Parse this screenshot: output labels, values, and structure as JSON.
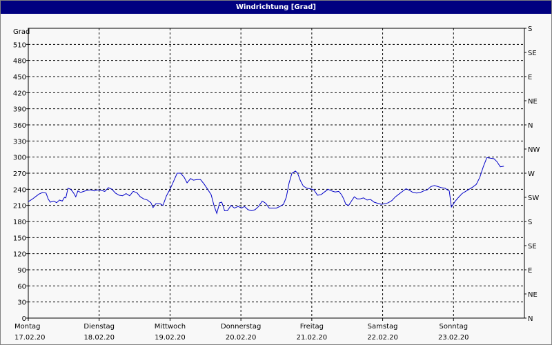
{
  "window": {
    "title": "Windrichtung [Grad]"
  },
  "chart_data": {
    "type": "line",
    "title": "Windrichtung [Grad]",
    "ylabel": "Grad",
    "ylim": [
      0,
      540
    ],
    "yticks": [
      0,
      30,
      60,
      90,
      120,
      150,
      180,
      210,
      240,
      270,
      300,
      330,
      360,
      390,
      420,
      450,
      480,
      510
    ],
    "right_axis_labels": [
      "N",
      "NE",
      "E",
      "SE",
      "S",
      "SW",
      "W",
      "NW",
      "N",
      "NE",
      "E",
      "SE",
      "S"
    ],
    "right_axis_values": [
      0,
      45,
      90,
      135,
      180,
      225,
      270,
      315,
      360,
      405,
      450,
      495,
      540
    ],
    "xlim": [
      0,
      7
    ],
    "x_ticks": [
      {
        "x": 0,
        "day": "Montag",
        "date": "17.02.20"
      },
      {
        "x": 1,
        "day": "Dienstag",
        "date": "18.02.20"
      },
      {
        "x": 2,
        "day": "Mittwoch",
        "date": "19.02.20"
      },
      {
        "x": 3,
        "day": "Donnerstag",
        "date": "20.02.20"
      },
      {
        "x": 4,
        "day": "Freitag",
        "date": "21.02.20"
      },
      {
        "x": 5,
        "day": "Samstag",
        "date": "22.02.20"
      },
      {
        "x": 6,
        "day": "Sonntag",
        "date": "23.02.20"
      }
    ],
    "grid": true,
    "series": [
      {
        "color": "#0000c8",
        "points": [
          [
            0.0,
            217
          ],
          [
            0.05,
            221
          ],
          [
            0.1,
            226
          ],
          [
            0.15,
            231
          ],
          [
            0.2,
            234
          ],
          [
            0.25,
            233
          ],
          [
            0.28,
            222
          ],
          [
            0.31,
            216
          ],
          [
            0.36,
            218
          ],
          [
            0.4,
            215
          ],
          [
            0.44,
            220
          ],
          [
            0.48,
            218
          ],
          [
            0.51,
            225
          ],
          [
            0.53,
            224
          ],
          [
            0.56,
            242
          ],
          [
            0.6,
            240
          ],
          [
            0.64,
            233
          ],
          [
            0.67,
            226
          ],
          [
            0.7,
            237
          ],
          [
            0.74,
            234
          ],
          [
            0.78,
            236
          ],
          [
            0.83,
            238
          ],
          [
            0.88,
            239
          ],
          [
            0.93,
            237
          ],
          [
            0.98,
            239
          ],
          [
            1.03,
            238
          ],
          [
            1.08,
            236
          ],
          [
            1.13,
            243
          ],
          [
            1.18,
            240
          ],
          [
            1.23,
            233
          ],
          [
            1.28,
            229
          ],
          [
            1.33,
            228
          ],
          [
            1.38,
            232
          ],
          [
            1.43,
            228
          ],
          [
            1.48,
            236
          ],
          [
            1.53,
            234
          ],
          [
            1.58,
            226
          ],
          [
            1.63,
            222
          ],
          [
            1.68,
            220
          ],
          [
            1.73,
            215
          ],
          [
            1.76,
            206
          ],
          [
            1.8,
            213
          ],
          [
            1.86,
            213
          ],
          [
            1.9,
            210
          ],
          [
            1.95,
            228
          ],
          [
            2.0,
            240
          ],
          [
            2.05,
            255
          ],
          [
            2.1,
            270
          ],
          [
            2.15,
            270
          ],
          [
            2.2,
            262
          ],
          [
            2.24,
            252
          ],
          [
            2.29,
            260
          ],
          [
            2.33,
            257
          ],
          [
            2.38,
            258
          ],
          [
            2.43,
            258
          ],
          [
            2.48,
            250
          ],
          [
            2.53,
            240
          ],
          [
            2.58,
            230
          ],
          [
            2.62,
            210
          ],
          [
            2.66,
            195
          ],
          [
            2.7,
            215
          ],
          [
            2.73,
            216
          ],
          [
            2.77,
            200
          ],
          [
            2.81,
            200
          ],
          [
            2.86,
            210
          ],
          [
            2.91,
            205
          ],
          [
            2.96,
            208
          ],
          [
            3.01,
            205
          ],
          [
            3.05,
            208
          ],
          [
            3.1,
            202
          ],
          [
            3.15,
            200
          ],
          [
            3.2,
            202
          ],
          [
            3.25,
            208
          ],
          [
            3.3,
            218
          ],
          [
            3.35,
            214
          ],
          [
            3.4,
            205
          ],
          [
            3.45,
            205
          ],
          [
            3.5,
            205
          ],
          [
            3.55,
            208
          ],
          [
            3.6,
            212
          ],
          [
            3.64,
            225
          ],
          [
            3.68,
            252
          ],
          [
            3.72,
            270
          ],
          [
            3.77,
            274
          ],
          [
            3.8,
            270
          ],
          [
            3.84,
            256
          ],
          [
            3.88,
            246
          ],
          [
            3.93,
            242
          ],
          [
            3.98,
            241
          ],
          [
            4.03,
            239
          ],
          [
            4.08,
            229
          ],
          [
            4.13,
            230
          ],
          [
            4.18,
            235
          ],
          [
            4.23,
            240
          ],
          [
            4.28,
            237
          ],
          [
            4.33,
            235
          ],
          [
            4.38,
            236
          ],
          [
            4.42,
            230
          ],
          [
            4.45,
            222
          ],
          [
            4.48,
            212
          ],
          [
            4.52,
            210
          ],
          [
            4.56,
            218
          ],
          [
            4.6,
            226
          ],
          [
            4.64,
            222
          ],
          [
            4.68,
            222
          ],
          [
            4.73,
            224
          ],
          [
            4.78,
            220
          ],
          [
            4.83,
            221
          ],
          [
            4.88,
            216
          ],
          [
            4.93,
            214
          ],
          [
            4.98,
            212
          ],
          [
            5.03,
            213
          ],
          [
            5.08,
            215
          ],
          [
            5.13,
            219
          ],
          [
            5.18,
            226
          ],
          [
            5.23,
            231
          ],
          [
            5.28,
            236
          ],
          [
            5.33,
            241
          ],
          [
            5.38,
            238
          ],
          [
            5.43,
            234
          ],
          [
            5.48,
            233
          ],
          [
            5.53,
            234
          ],
          [
            5.58,
            237
          ],
          [
            5.63,
            239
          ],
          [
            5.68,
            245
          ],
          [
            5.73,
            247
          ],
          [
            5.78,
            245
          ],
          [
            5.83,
            243
          ],
          [
            5.88,
            242
          ],
          [
            5.9,
            240
          ],
          [
            5.94,
            237
          ],
          [
            5.97,
            207
          ],
          [
            6.02,
            217
          ],
          [
            6.07,
            225
          ],
          [
            6.12,
            232
          ],
          [
            6.17,
            236
          ],
          [
            6.22,
            240
          ],
          [
            6.27,
            244
          ],
          [
            6.32,
            249
          ],
          [
            6.37,
            262
          ],
          [
            6.42,
            282
          ],
          [
            6.47,
            299
          ],
          [
            6.52,
            298
          ],
          [
            6.57,
            297
          ],
          [
            6.61,
            292
          ],
          [
            6.66,
            282
          ],
          [
            6.71,
            283
          ]
        ]
      }
    ]
  }
}
